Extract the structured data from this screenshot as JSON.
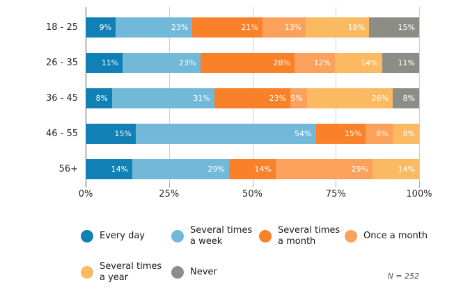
{
  "note": "N = 252",
  "colors": {
    "background": "#ffffff",
    "axis_line": "#4d4d4d",
    "gridline": "#cfcfcf",
    "bar_label_text": "#ffffff",
    "axis_label_text": "#262626",
    "note_text": "#595959"
  },
  "chart_data": {
    "type": "bar",
    "orientation": "horizontal",
    "stacked": true,
    "title": "",
    "xlabel": "",
    "ylabel": "",
    "xlim": [
      0,
      100
    ],
    "grid": true,
    "legend_position": "bottom",
    "value_suffix": "%",
    "categories": [
      "18 - 25",
      "26 - 35",
      "36 - 45",
      "46 - 55",
      "56+"
    ],
    "x_ticks": [
      "0%",
      "25%",
      "50%",
      "75%",
      "100%"
    ],
    "x_tick_values": [
      0,
      25,
      50,
      75,
      100
    ],
    "series": [
      {
        "name": "Every day",
        "legend_lines": [
          "Every day"
        ],
        "color": "#1180b5",
        "values": [
          9,
          11,
          8,
          15,
          14
        ]
      },
      {
        "name": "Several times a week",
        "legend_lines": [
          "Several times",
          "a week"
        ],
        "color": "#72b9d9",
        "values": [
          23,
          23,
          31,
          54,
          29
        ]
      },
      {
        "name": "Several times a month",
        "legend_lines": [
          "Several times",
          "a month"
        ],
        "color": "#f9812a",
        "values": [
          21,
          28,
          23,
          15,
          14
        ]
      },
      {
        "name": "Once a month",
        "legend_lines": [
          "Once a month"
        ],
        "color": "#fba15c",
        "values": [
          13,
          12,
          5,
          8,
          29
        ]
      },
      {
        "name": "Several times a year",
        "legend_lines": [
          "Several times",
          "a year"
        ],
        "color": "#fbb961",
        "values": [
          19,
          14,
          26,
          8,
          14
        ]
      },
      {
        "name": "Never",
        "legend_lines": [
          "Never"
        ],
        "color": "#8d8d88",
        "values": [
          15,
          11,
          8,
          0,
          0
        ]
      }
    ]
  }
}
